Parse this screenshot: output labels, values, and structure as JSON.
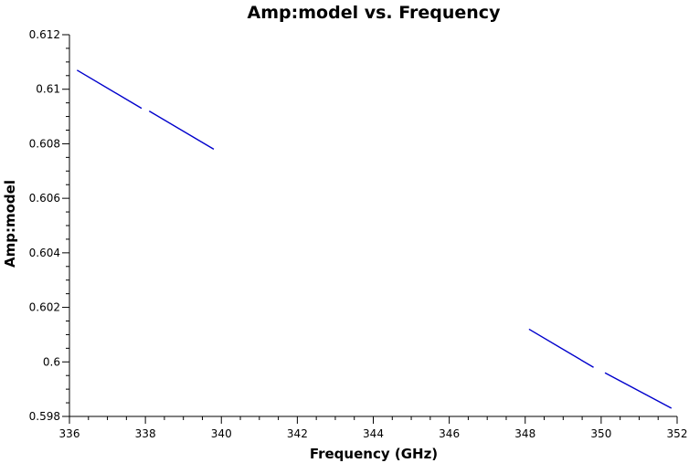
{
  "chart_data": {
    "type": "line",
    "title": "Amp:model vs. Frequency",
    "xlabel": "Frequency (GHz)",
    "ylabel": "Amp:model",
    "xlim": [
      336,
      352
    ],
    "ylim": [
      0.598,
      0.612
    ],
    "x_ticks": [
      336,
      338,
      340,
      342,
      344,
      346,
      348,
      350,
      352
    ],
    "x_tick_labels": [
      "336",
      "338",
      "340",
      "342",
      "344",
      "346",
      "348",
      "350",
      "352"
    ],
    "y_ticks": [
      0.598,
      0.6,
      0.602,
      0.604,
      0.606,
      0.608,
      0.61,
      0.612
    ],
    "y_tick_labels": [
      "0.598",
      "0.6",
      "0.602",
      "0.604",
      "0.606",
      "0.608",
      "0.61",
      "0.612"
    ],
    "grid": false,
    "series_color": "#0000cc",
    "series": [
      {
        "segments": [
          {
            "x": [
              336.2,
              337.9
            ],
            "y": [
              0.6107,
              0.6093
            ]
          },
          {
            "x": [
              338.1,
              339.8
            ],
            "y": [
              0.6092,
              0.6078
            ]
          },
          {
            "x": [
              348.1,
              349.8
            ],
            "y": [
              0.6012,
              0.5998
            ]
          },
          {
            "x": [
              350.1,
              351.85
            ],
            "y": [
              0.5996,
              0.5983
            ]
          }
        ]
      }
    ]
  }
}
